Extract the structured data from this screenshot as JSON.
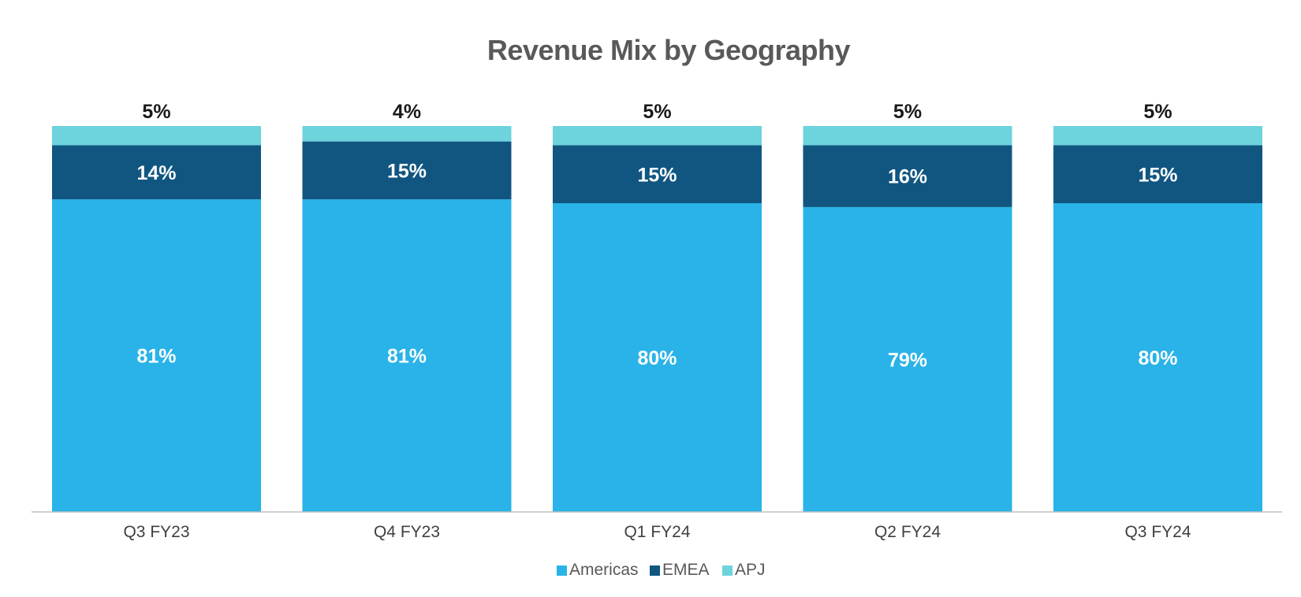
{
  "chart_data": {
    "type": "bar",
    "stacked": true,
    "title": "Revenue Mix by Geography",
    "categories": [
      "Q3 FY23",
      "Q4 FY23",
      "Q1 FY24",
      "Q2 FY24",
      "Q3 FY24"
    ],
    "series": [
      {
        "name": "Americas",
        "color": "#29B3E8",
        "label_color": "#FFFFFF",
        "values": [
          81,
          81,
          80,
          79,
          80
        ]
      },
      {
        "name": "EMEA",
        "color": "#115681",
        "label_color": "#FFFFFF",
        "values": [
          14,
          15,
          15,
          16,
          15
        ]
      },
      {
        "name": "APJ",
        "color": "#6DD3DD",
        "label_color": "#1A1A1A",
        "values": [
          5,
          4,
          5,
          5,
          5
        ]
      }
    ],
    "value_suffix": "%",
    "ylim": [
      0,
      100
    ],
    "xlabel": "",
    "ylabel": "",
    "grid": false,
    "legend_position": "bottom-center",
    "top_segment_label_position": "above-bar"
  }
}
